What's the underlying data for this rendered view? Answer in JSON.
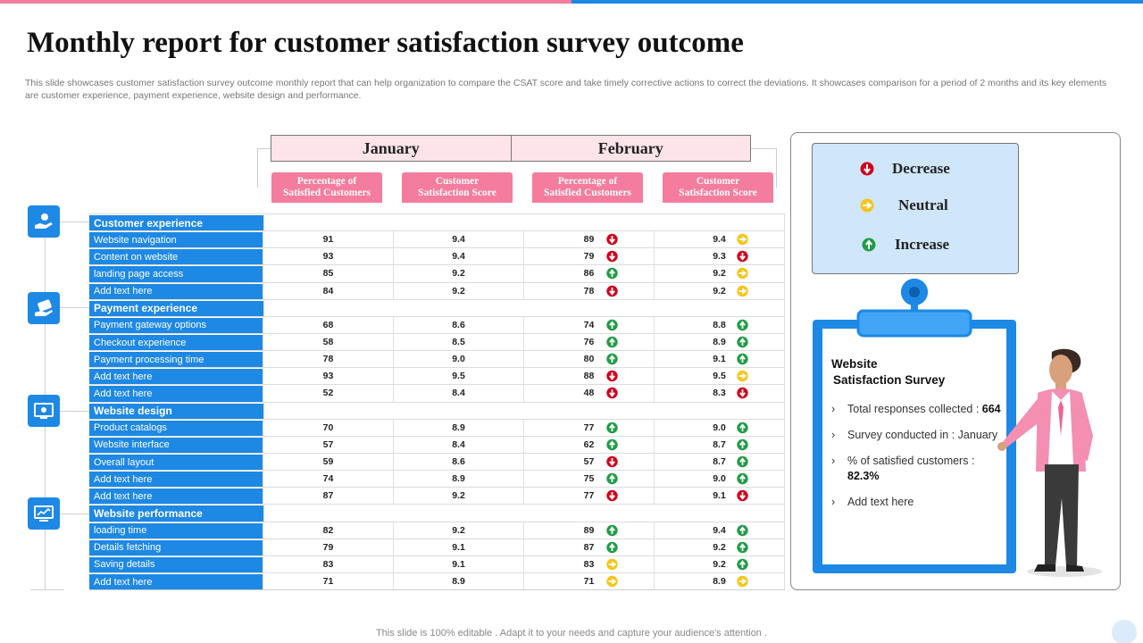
{
  "title": "Monthly report for customer satisfaction survey outcome",
  "subtitle": "This slide showcases customer satisfaction survey outcome monthly report that can help organization to compare the CSAT score and take timely corrective actions to correct the deviations. It showcases comparison for a period of 2 months and its key elements are customer experience, payment experience, website design and performance.",
  "months": [
    "January",
    "February"
  ],
  "column_headers": [
    {
      "line1": "Percentage of",
      "line2": "Satisfied Customers"
    },
    {
      "line1": "Customer",
      "line2": "Satisfaction Score"
    },
    {
      "line1": "Percentage of",
      "line2": "Satisfied Customers"
    },
    {
      "line1": "Customer",
      "line2": "Satisfaction Score"
    }
  ],
  "rows": [
    {
      "label": "Customer experience",
      "category": true
    },
    {
      "label": "Website navigation",
      "values": [
        "91",
        "9.4",
        "89",
        "9.4"
      ],
      "ind": [
        "decrease",
        "neutral"
      ]
    },
    {
      "label": "Content on website",
      "values": [
        "93",
        "9.4",
        "79",
        "9.3"
      ],
      "ind": [
        "decrease",
        "decrease"
      ]
    },
    {
      "label": "landing page access",
      "values": [
        "85",
        "9.2",
        "86",
        "9.2"
      ],
      "ind": [
        "increase",
        "neutral"
      ]
    },
    {
      "label": "Add text here",
      "values": [
        "84",
        "9.2",
        "78",
        "9.2"
      ],
      "ind": [
        "decrease",
        "neutral"
      ]
    },
    {
      "label": "Payment experience",
      "category": true
    },
    {
      "label": "Payment gateway options",
      "values": [
        "68",
        "8.6",
        "74",
        "8.8"
      ],
      "ind": [
        "increase",
        "increase"
      ]
    },
    {
      "label": "Checkout experience",
      "values": [
        "58",
        "8.5",
        "76",
        "8.9"
      ],
      "ind": [
        "increase",
        "increase"
      ]
    },
    {
      "label": "Payment processing time",
      "values": [
        "78",
        "9.0",
        "80",
        "9.1"
      ],
      "ind": [
        "increase",
        "increase"
      ]
    },
    {
      "label": "Add text here",
      "values": [
        "93",
        "9.5",
        "88",
        "9.5"
      ],
      "ind": [
        "decrease",
        "neutral"
      ]
    },
    {
      "label": "Add text here",
      "values": [
        "52",
        "8.4",
        "48",
        "8.3"
      ],
      "ind": [
        "decrease",
        "decrease"
      ]
    },
    {
      "label": "Website design",
      "category": true
    },
    {
      "label": "Product catalogs",
      "values": [
        "70",
        "8.9",
        "77",
        "9.0"
      ],
      "ind": [
        "increase",
        "increase"
      ]
    },
    {
      "label": "Website interface",
      "values": [
        "57",
        "8.4",
        "62",
        "8.7"
      ],
      "ind": [
        "increase",
        "increase"
      ]
    },
    {
      "label": "Overall layout",
      "values": [
        "59",
        "8.6",
        "57",
        "8.7"
      ],
      "ind": [
        "decrease",
        "increase"
      ]
    },
    {
      "label": "Add text here",
      "values": [
        "74",
        "8.9",
        "75",
        "9.0"
      ],
      "ind": [
        "increase",
        "increase"
      ]
    },
    {
      "label": "Add text here",
      "values": [
        "87",
        "9.2",
        "77",
        "9.1"
      ],
      "ind": [
        "decrease",
        "decrease"
      ]
    },
    {
      "label": "Website performance",
      "category": true
    },
    {
      "label": "loading time",
      "values": [
        "82",
        "9.2",
        "89",
        "9.4"
      ],
      "ind": [
        "increase",
        "increase"
      ]
    },
    {
      "label": "Details fetching",
      "values": [
        "79",
        "9.1",
        "87",
        "9.2"
      ],
      "ind": [
        "increase",
        "increase"
      ]
    },
    {
      "label": "Saving details",
      "values": [
        "83",
        "9.1",
        "83",
        "9.2"
      ],
      "ind": [
        "neutral",
        "increase"
      ]
    },
    {
      "label": "Add text here",
      "values": [
        "71",
        "8.9",
        "71",
        "8.9"
      ],
      "ind": [
        "neutral",
        "neutral"
      ]
    }
  ],
  "legend": {
    "decrease": "Decrease",
    "neutral": "Neutral",
    "increase": "Increase"
  },
  "colors": {
    "decrease": "#d0021b",
    "neutral": "#f5c518",
    "increase": "#1f9d45",
    "accent": "#1e88e5",
    "pink": "#f47c9c"
  },
  "survey": {
    "title_line1": "Website",
    "title_line2": "Satisfaction Survey",
    "items": [
      {
        "text": "Total responses collected : ",
        "bold": "664"
      },
      {
        "text": "Survey conducted in : January",
        "bold": ""
      },
      {
        "text": "% of satisfied customers : ",
        "bold": "82.3%"
      },
      {
        "text": "Add text here",
        "bold": ""
      }
    ]
  },
  "footer": "This slide is 100% editable . Adapt it to your needs and capture your audience's attention ."
}
